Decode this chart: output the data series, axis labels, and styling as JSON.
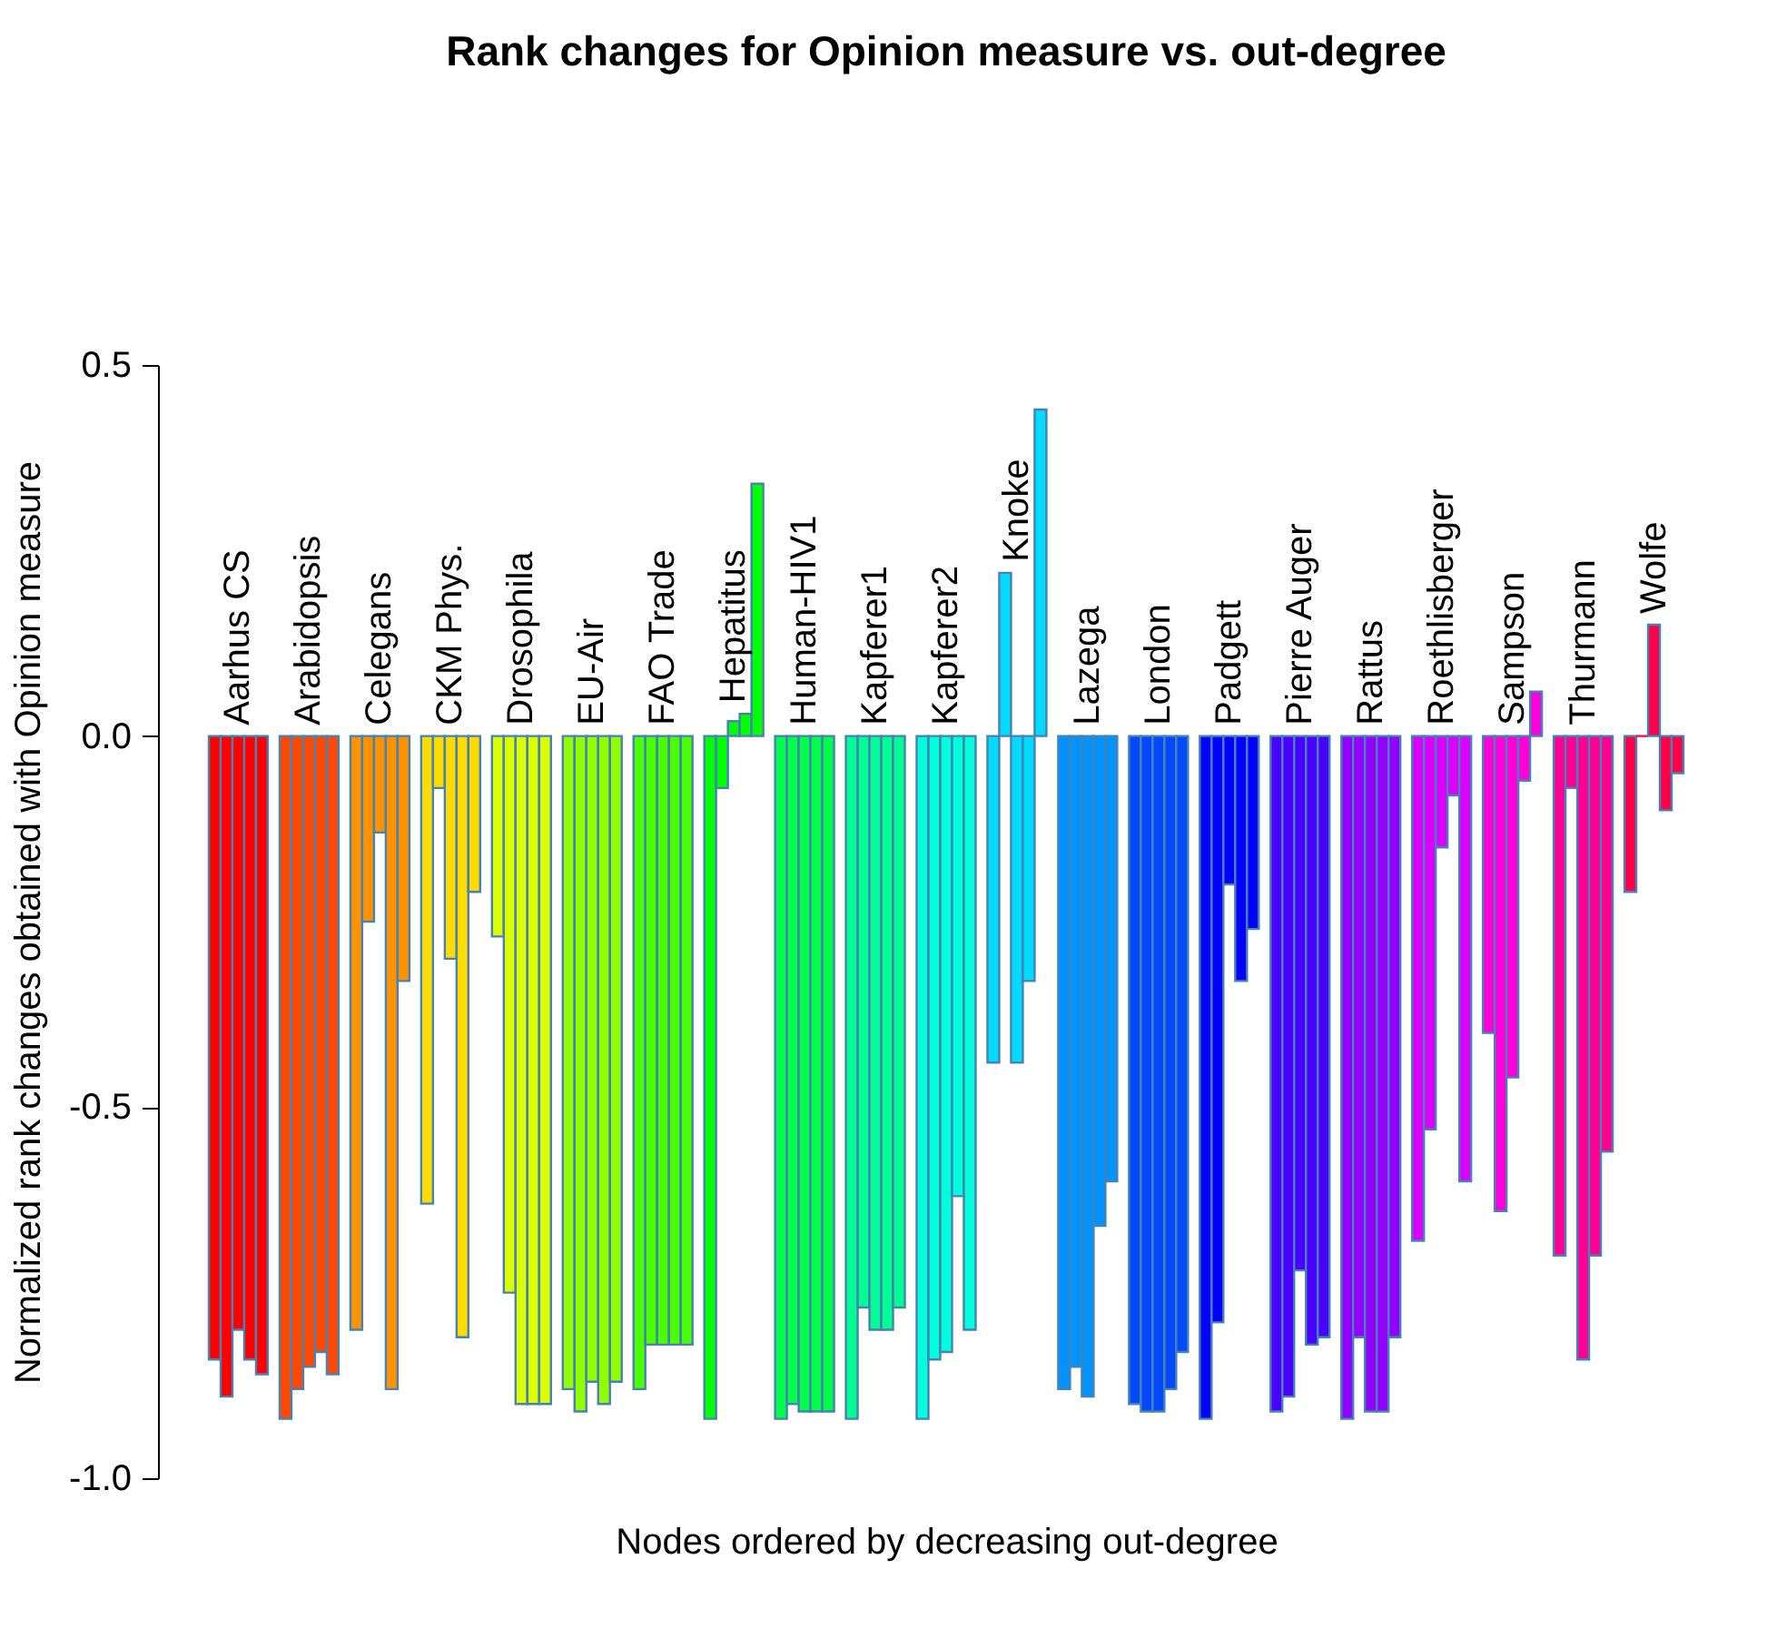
{
  "chart_data": {
    "type": "bar",
    "title": "Rank changes for Opinion measure vs. out-degree",
    "xlabel": "Nodes ordered by decreasing out-degree",
    "ylabel": "Normalized rank changes obtained with Opinion measure",
    "categories": [
      null,
      null,
      "Aarhus CS",
      null,
      null,
      null,
      null,
      null,
      "Arabidopsis",
      null,
      null,
      null,
      null,
      null,
      "Celegans",
      null,
      null,
      null,
      null,
      null,
      "CKM Phys.",
      null,
      null,
      null,
      null,
      null,
      "Drosophila",
      null,
      null,
      null,
      null,
      null,
      "EU-Air",
      null,
      null,
      null,
      null,
      null,
      "FAO Trade",
      null,
      null,
      null,
      null,
      null,
      "Hepatitus",
      null,
      null,
      null,
      null,
      null,
      "Human-HIV1",
      null,
      null,
      null,
      null,
      null,
      "Kapferer1",
      null,
      null,
      null,
      null,
      null,
      "Kapferer2",
      null,
      null,
      null,
      null,
      null,
      "Knoke",
      null,
      null,
      null,
      null,
      null,
      "Lazega",
      null,
      null,
      null,
      null,
      null,
      "London",
      null,
      null,
      null,
      null,
      null,
      "Padgett",
      null,
      null,
      null,
      null,
      null,
      "Pierre Auger",
      null,
      null,
      null,
      null,
      null,
      "Rattus",
      null,
      null,
      null,
      null,
      null,
      "Roethlisberger",
      null,
      null,
      null,
      null,
      null,
      "Sampson",
      null,
      null,
      null,
      null,
      null,
      "Thurmann",
      null,
      null,
      null,
      null,
      null,
      "Wolfe",
      null,
      null
    ],
    "values": [
      -0.84,
      -0.89,
      -0.8,
      -0.84,
      -0.86,
      null,
      -0.92,
      -0.88,
      -0.85,
      -0.83,
      -0.86,
      null,
      -0.8,
      -0.25,
      -0.13,
      -0.88,
      -0.33,
      null,
      -0.63,
      -0.07,
      -0.3,
      -0.81,
      -0.21,
      null,
      -0.27,
      -0.75,
      -0.9,
      -0.9,
      -0.9,
      null,
      -0.88,
      -0.91,
      -0.87,
      -0.9,
      -0.87,
      null,
      -0.88,
      -0.82,
      -0.82,
      -0.82,
      -0.82,
      null,
      -0.92,
      -0.07,
      0.02,
      0.03,
      0.34,
      null,
      -0.92,
      -0.9,
      -0.91,
      -0.91,
      -0.91,
      null,
      -0.92,
      -0.77,
      -0.8,
      -0.8,
      -0.77,
      null,
      -0.92,
      -0.84,
      -0.83,
      -0.62,
      -0.8,
      null,
      -0.44,
      0.22,
      -0.44,
      -0.33,
      0.44,
      null,
      -0.88,
      -0.85,
      -0.89,
      -0.66,
      -0.6,
      null,
      -0.9,
      -0.91,
      -0.91,
      -0.88,
      -0.83,
      null,
      -0.92,
      -0.79,
      -0.2,
      -0.33,
      -0.26,
      null,
      -0.91,
      -0.89,
      -0.72,
      -0.82,
      -0.81,
      null,
      -0.92,
      -0.81,
      -0.91,
      -0.91,
      -0.81,
      null,
      -0.68,
      -0.53,
      -0.15,
      -0.08,
      -0.6,
      null,
      -0.4,
      -0.64,
      -0.46,
      -0.06,
      0.06,
      null,
      -0.7,
      -0.07,
      -0.84,
      -0.7,
      -0.56,
      null,
      -0.21,
      0,
      0.15,
      -0.1,
      -0.05
    ],
    "colors": [
      "#FF0000",
      "#FF0000",
      "#FF0000",
      "#FF0000",
      "#FF0000",
      null,
      "#FF4900",
      "#FF4900",
      "#FF4900",
      "#FF4900",
      "#FF4900",
      null,
      "#FF9200",
      "#FF9200",
      "#FF9200",
      "#FF9200",
      "#FF9200",
      null,
      "#FFDB00",
      "#FFDB00",
      "#FFDB00",
      "#FFDB00",
      "#FFDB00",
      null,
      "#DBFF00",
      "#DBFF00",
      "#DBFF00",
      "#DBFF00",
      "#DBFF00",
      null,
      "#92FF00",
      "#92FF00",
      "#92FF00",
      "#92FF00",
      "#92FF00",
      null,
      "#49FF00",
      "#49FF00",
      "#49FF00",
      "#49FF00",
      "#49FF00",
      null,
      "#00FF00",
      "#00FF00",
      "#00FF00",
      "#00FF00",
      "#00FF00",
      null,
      "#00FF49",
      "#00FF49",
      "#00FF49",
      "#00FF49",
      "#00FF49",
      null,
      "#00FF92",
      "#00FF92",
      "#00FF92",
      "#00FF92",
      "#00FF92",
      null,
      "#00FFDB",
      "#00FFDB",
      "#00FFDB",
      "#00FFDB",
      "#00FFDB",
      null,
      "#00DBFF",
      "#00DBFF",
      "#00DBFF",
      "#00DBFF",
      "#00DBFF",
      null,
      "#0092FF",
      "#0092FF",
      "#0092FF",
      "#0092FF",
      "#0092FF",
      null,
      "#0049FF",
      "#0049FF",
      "#0049FF",
      "#0049FF",
      "#0049FF",
      null,
      "#0000FF",
      "#0000FF",
      "#0000FF",
      "#0000FF",
      "#0000FF",
      null,
      "#4900FF",
      "#4900FF",
      "#4900FF",
      "#4900FF",
      "#4900FF",
      null,
      "#9200FF",
      "#9200FF",
      "#9200FF",
      "#9200FF",
      "#9200FF",
      null,
      "#DB00FF",
      "#DB00FF",
      "#DB00FF",
      "#DB00FF",
      "#DB00FF",
      null,
      "#FF00DB",
      "#FF00DB",
      "#FF00DB",
      "#FF00DB",
      "#FF00DB",
      null,
      "#FF0092",
      "#FF0092",
      "#FF0092",
      "#FF0092",
      "#FF0092",
      null,
      "#FF0049",
      "#FF0049",
      "#FF0049",
      "#FF0049",
      "#FF0049"
    ],
    "ylim": [
      -1.0,
      0.5
    ],
    "yticks": [
      {
        "value": -1.0,
        "label": "-1.0"
      },
      {
        "value": -0.5,
        "label": "-0.5"
      },
      {
        "value": 0,
        "label": "0.0"
      },
      {
        "value": 0.5,
        "label": "0.5"
      }
    ],
    "tick_labels": "y",
    "grid": false
  }
}
